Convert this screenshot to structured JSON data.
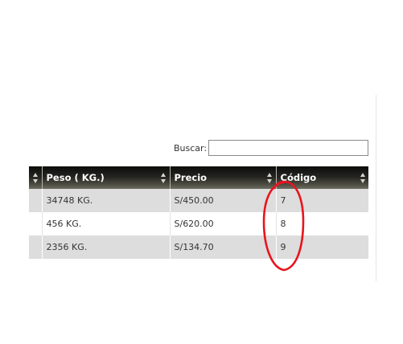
{
  "search": {
    "label": "Buscar:",
    "value": "",
    "placeholder": ""
  },
  "table": {
    "columns": [
      {
        "key": "sel",
        "label": ""
      },
      {
        "key": "peso",
        "label": "Peso ( KG.)"
      },
      {
        "key": "precio",
        "label": "Precio"
      },
      {
        "key": "codigo",
        "label": "Código"
      }
    ],
    "rows": [
      {
        "sel": "",
        "peso": "34748 KG.",
        "precio": "S/450.00",
        "codigo": "7"
      },
      {
        "sel": "",
        "peso": "456 KG.",
        "precio": "S/620.00",
        "codigo": "8"
      },
      {
        "sel": "",
        "peso": "2356 KG.",
        "precio": "S/134.70",
        "codigo": "9"
      }
    ]
  },
  "icons": {
    "sort": "sort-both-icon"
  },
  "colors": {
    "header_dark": "#0c0c0a",
    "header_light": "#6c6c60",
    "row_shaded": "#dddddd",
    "row_plain": "#ffffff",
    "annotation_circle": "#e8141e"
  }
}
